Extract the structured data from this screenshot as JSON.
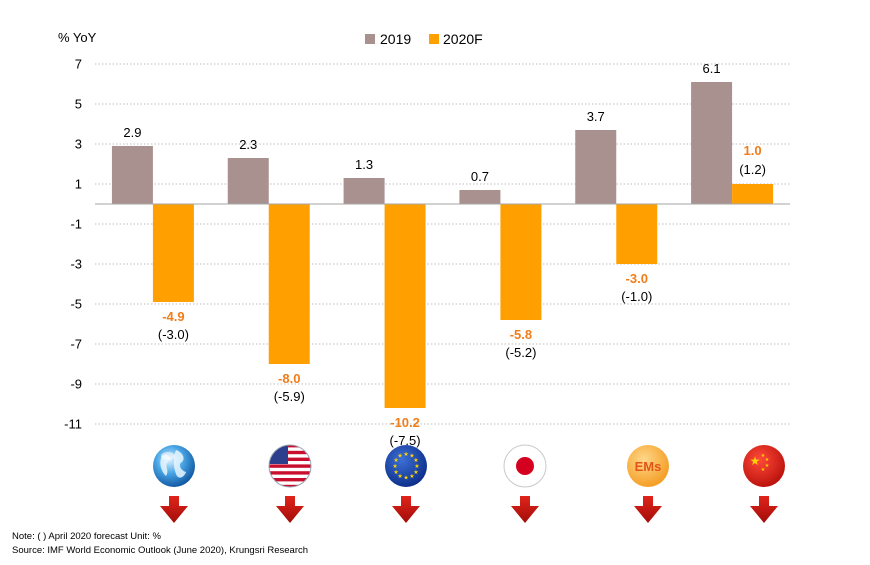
{
  "chart_data": {
    "type": "bar",
    "ylabel": "% YoY",
    "yticks": [
      7,
      5,
      3,
      1,
      -1,
      -3,
      -5,
      -7,
      -9,
      -11
    ],
    "ylim": [
      -12,
      8
    ],
    "grid": true,
    "legend_position": "top-center",
    "categories": [
      "World",
      "US",
      "Eurozone",
      "Japan",
      "EMs",
      "China"
    ],
    "series": [
      {
        "name": "2019",
        "color": "#a8918f",
        "values": [
          2.9,
          2.3,
          1.3,
          0.7,
          3.7,
          6.1
        ],
        "labels": [
          "2.9",
          "2.3",
          "1.3",
          "0.7",
          "3.7",
          "6.1"
        ]
      },
      {
        "name": "2020F",
        "color": "#ffa000",
        "values": [
          -4.9,
          -8.0,
          -10.2,
          -5.8,
          -3.0,
          1.0
        ],
        "labels": [
          "-4.9",
          "-8.0",
          "-10.2",
          "-5.8",
          "-3.0",
          "1.0"
        ]
      }
    ],
    "april_forecast_labels": [
      "(-3.0)",
      "(-5.9)",
      "(-7.5)",
      "(-5.2)",
      "(-1.0)",
      "(1.2)"
    ],
    "category_icons": [
      {
        "name": "globe-icon",
        "text": ""
      },
      {
        "name": "us-flag-icon",
        "text": ""
      },
      {
        "name": "eu-flag-icon",
        "text": ""
      },
      {
        "name": "japan-flag-icon",
        "text": ""
      },
      {
        "name": "ems-badge-icon",
        "text": "EMs"
      },
      {
        "name": "china-flag-icon",
        "text": ""
      }
    ],
    "down_arrow_icon": "down-arrow-icon",
    "label_color_2020F": "#f07d1a"
  },
  "notes": {
    "line1": "Note: (   ) April 2020 forecast      Unit: %",
    "line2": "Source: IMF World Economic Outlook (June 2020), Krungsri Research"
  }
}
